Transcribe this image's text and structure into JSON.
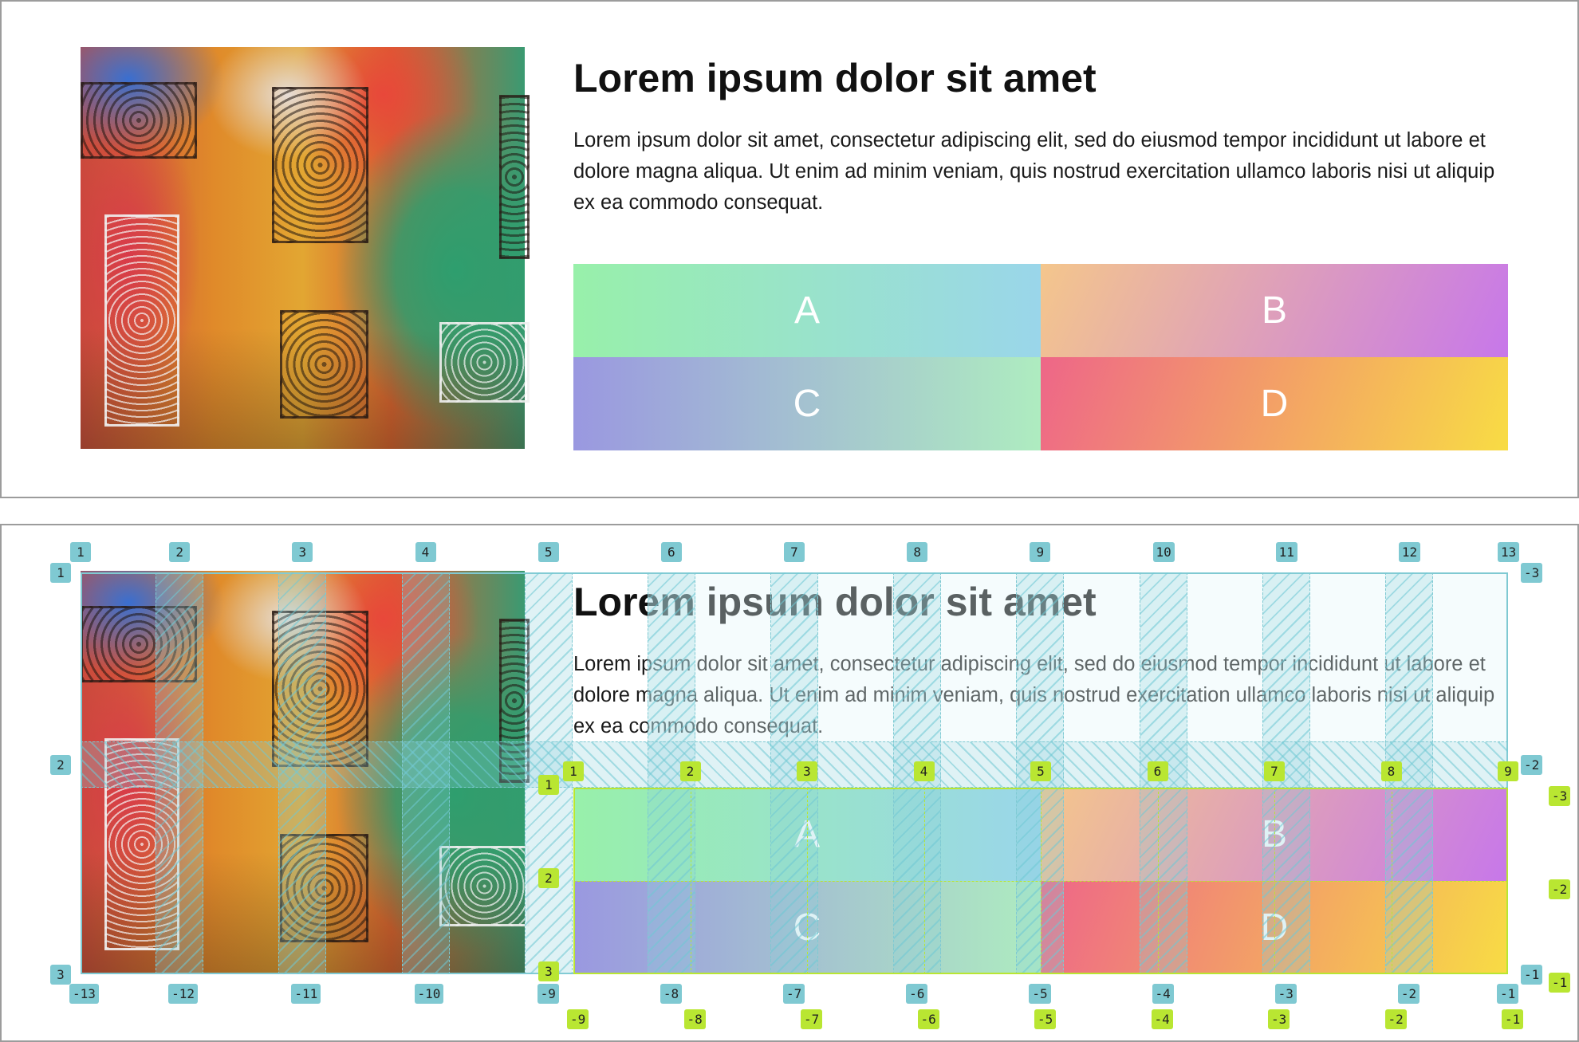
{
  "card": {
    "title": "Lorem ipsum dolor sit amet",
    "paragraph": "Lorem ipsum dolor sit amet, consectetur adipiscing elit, sed do eiusmod tempor incididunt ut labore et dolore magna aliqua. Ut enim ad minim veniam, quis nostrud exercitation ullamco laboris nisi ut aliquip ex ea commodo consequat.",
    "cells": [
      {
        "label": "A",
        "gradient": [
          "#98f0aa",
          "#9ad6ea"
        ]
      },
      {
        "label": "B",
        "gradient": [
          "#f4c68c",
          "#c777ea"
        ]
      },
      {
        "label": "C",
        "gradient": [
          "#9a98e0",
          "#aeecc0"
        ]
      },
      {
        "label": "D",
        "gradient": [
          "#ee6688",
          "#f8dc44"
        ]
      }
    ]
  },
  "grid_inspector": {
    "outer_grid": {
      "color": "#7fc9d2",
      "column_count": 12,
      "row_count": 2,
      "top_labels": [
        "1",
        "2",
        "3",
        "4",
        "5",
        "6",
        "7",
        "8",
        "9",
        "10",
        "11",
        "12",
        "13"
      ],
      "bottom_labels": [
        "-13",
        "-12",
        "-11",
        "-10",
        "-9",
        "-8",
        "-7",
        "-6",
        "-5",
        "-4",
        "-3",
        "-2",
        "-1"
      ],
      "left_labels": [
        "1",
        "2",
        "3"
      ],
      "right_labels": [
        "-3",
        "-2",
        "-1"
      ]
    },
    "inner_grid": {
      "color": "#b9e632",
      "column_count": 8,
      "row_count": 2,
      "top_labels": [
        "1",
        "2",
        "3",
        "4",
        "5",
        "6",
        "7",
        "8",
        "9"
      ],
      "bottom_labels": [
        "-9",
        "-8",
        "-7",
        "-6",
        "-5",
        "-4",
        "-3",
        "-2",
        "-1"
      ],
      "left_labels": [
        "1",
        "2",
        "3"
      ],
      "right_labels": [
        "-3",
        "-2",
        "-1"
      ]
    }
  }
}
